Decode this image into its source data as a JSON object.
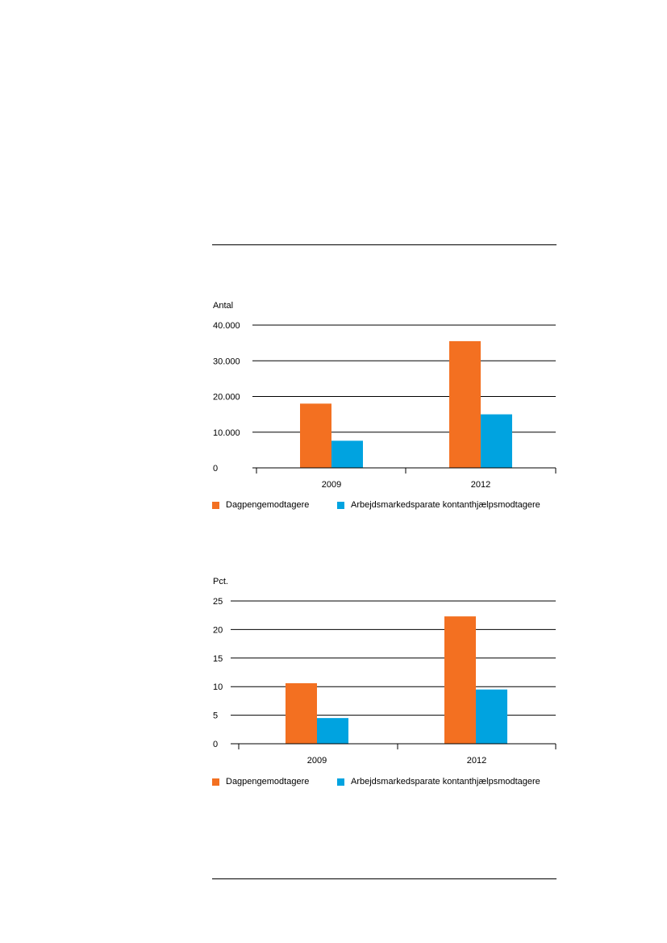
{
  "colors": {
    "series_1": "#f37021",
    "series_2": "#00a3e0",
    "gridline": "#000000"
  },
  "chart_data": [
    {
      "type": "bar",
      "ylabel": "Antal",
      "categories": [
        "2009",
        "2012"
      ],
      "yticks": [
        "0",
        "10.000",
        "20.000",
        "30.000",
        "40.000"
      ],
      "ylim": [
        0,
        40000
      ],
      "grid": true,
      "legend_position": "bottom",
      "series": [
        {
          "name": "Dagpengemodtagere",
          "values": [
            18000,
            35500
          ]
        },
        {
          "name": "Arbejdsmarkedsparate kontanthjælpsmodtagere",
          "values": [
            7600,
            15000
          ]
        }
      ]
    },
    {
      "type": "bar",
      "ylabel": "Pct.",
      "categories": [
        "2009",
        "2012"
      ],
      "yticks": [
        "0",
        "5",
        "10",
        "15",
        "20",
        "25"
      ],
      "ylim": [
        0,
        25
      ],
      "grid": true,
      "legend_position": "bottom",
      "series": [
        {
          "name": "Dagpengemodtagere",
          "values": [
            10.6,
            22.3
          ]
        },
        {
          "name": "Arbejdsmarkedsparate kontanthjælpsmodtagere",
          "values": [
            4.5,
            9.5
          ]
        }
      ]
    }
  ]
}
